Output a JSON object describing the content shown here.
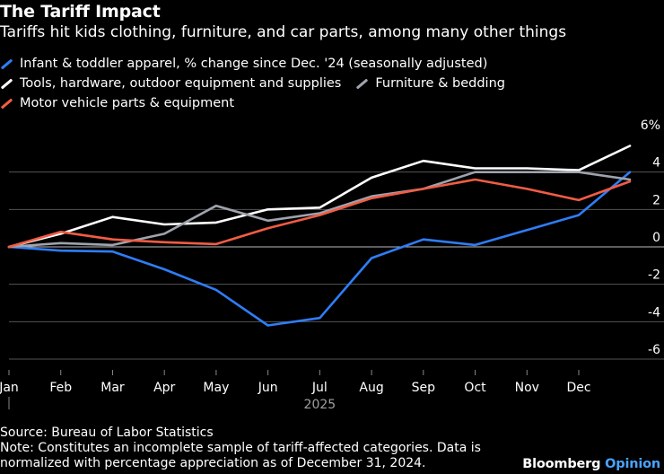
{
  "header": {
    "title": "The Tariff Impact",
    "subtitle": "Tariffs hit kids clothing, furniture, and car parts, among many other things"
  },
  "footer": {
    "source": "Source: Bureau of Labor Statistics",
    "note_line1": "Note: Constitutes an incomplete sample of tariff-affected categories. Data is",
    "note_line2": "normalized with percentage appreciation as of December 31, 2024."
  },
  "brand": {
    "name": "Bloomberg",
    "suffix": "Opinion"
  },
  "colors": {
    "background": "#000000",
    "grid": "#555555",
    "text": "#ffffff",
    "muted": "#a0a0a0",
    "brand_accent": "#4aa3ff"
  },
  "chart_data": {
    "type": "line",
    "title": "The Tariff Impact",
    "x_labels": [
      "Jan",
      "Feb",
      "Mar",
      "Apr",
      "May",
      "Jun",
      "Jul",
      "Aug",
      "Sep",
      "Oct",
      "Nov",
      "Dec"
    ],
    "year_label": "2025",
    "ylim": [
      -6,
      6
    ],
    "y_ticks": [
      6,
      4,
      2,
      0,
      -2,
      -4,
      -6
    ],
    "y_tick_labels": [
      "6%",
      "4",
      "2",
      "0",
      "-2",
      "-4",
      "-6"
    ],
    "grid": true,
    "series": [
      {
        "name": "Infant & toddler apparel, % change since Dec. '24 (seasonally adjusted)",
        "color": "#2f7df6",
        "values": [
          0,
          -0.2,
          -0.25,
          -1.2,
          -2.3,
          -4.2,
          -3.8,
          -0.6,
          0.4,
          0.1,
          0.9,
          1.7,
          4.0
        ]
      },
      {
        "name": "Tools, hardware, outdoor equipment and supplies",
        "color": "#ffffff",
        "values": [
          0,
          0.7,
          1.6,
          1.2,
          1.3,
          2.0,
          2.1,
          3.7,
          4.6,
          4.2,
          4.2,
          4.1,
          5.4
        ]
      },
      {
        "name": "Furniture & bedding",
        "color": "#9ea3ad",
        "values": [
          0,
          0.2,
          0.1,
          0.7,
          2.2,
          1.4,
          1.8,
          2.7,
          3.1,
          4.0,
          4.0,
          4.0,
          3.6
        ]
      },
      {
        "name": "Motor vehicle parts & equipment",
        "color": "#f25c45",
        "values": [
          0,
          0.8,
          0.4,
          0.25,
          0.15,
          1.0,
          1.7,
          2.6,
          3.1,
          3.6,
          3.1,
          2.5,
          3.5
        ]
      }
    ]
  }
}
